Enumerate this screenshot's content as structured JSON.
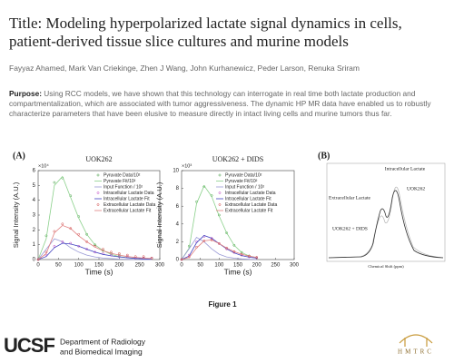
{
  "header": {
    "title": "Title: Modeling hyperpolarized lactate signal dynamics in cells, patient-derived tissue slice cultures and murine models",
    "authors": "Fayyaz Ahamed, Mark Van Criekinge, Zhen J Wang, John Kurhanewicz, Peder Larson, Renuka Sriram"
  },
  "purpose": {
    "label": "Purpose:",
    "text": "Using RCC models, we have shown that this technology can interrogate in real time both lactate production and compartmentalization, which are associated with tumor aggressiveness. The dynamic HP MR data have enabled us to robustly characterize parameters that have been elusive to measure directly in intact living cells and murine tumors thus far."
  },
  "figure": {
    "panel_a": "(A)",
    "panel_b": "(B)",
    "caption": "Figure 1",
    "spectrum": {
      "label_intra": "Intracellular Lactate",
      "label_uok": "UOK262",
      "label_extra": "Extracellular Lactate",
      "label_dids": "UOK262 + DIDS",
      "x_label": "Chemical Shift (ppm)"
    }
  },
  "chart_data": [
    {
      "type": "line",
      "title": "UOK262",
      "y_exponent": "×10⁴",
      "x_label": "Time (s)",
      "y_label": "Signal Intensity (A.U.)",
      "x": [
        0,
        20,
        40,
        60,
        80,
        100,
        120,
        140,
        160,
        180,
        200,
        220,
        240,
        260,
        280
      ],
      "xlim": [
        0,
        300
      ],
      "xticks": [
        0,
        50,
        100,
        150,
        200,
        250,
        300
      ],
      "ylim": [
        0,
        6
      ],
      "yticks": [
        0,
        1,
        2,
        3,
        4,
        5,
        6
      ],
      "series": [
        {
          "name": "Pyruvate Data/10²",
          "color": "#3c9a3c",
          "style": "points",
          "values": [
            0,
            1.6,
            5.2,
            5.5,
            4.3,
            2.9,
            1.7,
            1.0,
            0.6,
            0.4,
            0.3,
            0.2,
            0.1,
            0.1,
            0.1
          ]
        },
        {
          "name": "Pyruvate Fit/10²",
          "color": "#8ad08a",
          "style": "line",
          "values": [
            0,
            1.4,
            5.0,
            5.6,
            4.2,
            2.8,
            1.7,
            1.0,
            0.6,
            0.35,
            0.2,
            0.12,
            0.07,
            0.04,
            0.02
          ]
        },
        {
          "name": "Input Function / 10²",
          "color": "#9a9ad6",
          "style": "line",
          "values": [
            0,
            0.7,
            1.4,
            1.2,
            0.8,
            0.5,
            0.3,
            0.18,
            0.1,
            0.06,
            0.03,
            0.02,
            0.01,
            0,
            0
          ]
        },
        {
          "name": "Intracellular Lactate Data",
          "color": "#c040c0",
          "style": "points",
          "values": [
            0,
            0.3,
            0.9,
            1.2,
            1.1,
            0.9,
            0.7,
            0.5,
            0.4,
            0.3,
            0.2,
            0.2,
            0.1,
            0.1,
            0.1
          ]
        },
        {
          "name": "Intracellular Lactate Fit",
          "color": "#4040c0",
          "style": "line",
          "values": [
            0,
            0.2,
            0.8,
            1.1,
            1.05,
            0.9,
            0.7,
            0.5,
            0.35,
            0.25,
            0.18,
            0.12,
            0.08,
            0.05,
            0.03
          ]
        },
        {
          "name": "Extracellular Lactate Data",
          "color": "#d04040",
          "style": "points",
          "values": [
            0,
            0.5,
            1.9,
            2.4,
            2.1,
            1.7,
            1.2,
            0.9,
            0.7,
            0.5,
            0.4,
            0.3,
            0.2,
            0.2,
            0.1
          ]
        },
        {
          "name": "Extracellular Lactate Fit",
          "color": "#e08080",
          "style": "line",
          "values": [
            0,
            0.4,
            1.8,
            2.3,
            2.1,
            1.6,
            1.2,
            0.85,
            0.6,
            0.42,
            0.3,
            0.2,
            0.14,
            0.1,
            0.07
          ]
        }
      ]
    },
    {
      "type": "line",
      "title": "UOK262 + DIDS",
      "y_exponent": "×10³",
      "x_label": "Time (s)",
      "y_label": "Signal Intensity (A.U.)",
      "x": [
        0,
        20,
        40,
        60,
        80,
        100,
        120,
        140,
        160,
        180,
        200
      ],
      "xlim": [
        0,
        300
      ],
      "xticks": [
        0,
        50,
        100,
        150,
        200,
        250,
        300
      ],
      "ylim": [
        0,
        10
      ],
      "yticks": [
        0,
        2,
        4,
        6,
        8,
        10
      ],
      "series": [
        {
          "name": "Pyruvate Data/10²",
          "color": "#3c9a3c",
          "style": "points",
          "values": [
            0,
            1.5,
            6.5,
            8.2,
            7.2,
            5.0,
            3.0,
            1.6,
            0.8,
            0.4,
            0.2
          ]
        },
        {
          "name": "Pyruvate Fit/10²",
          "color": "#8ad08a",
          "style": "line",
          "values": [
            0,
            1.3,
            6.3,
            8.3,
            7.1,
            4.9,
            3.0,
            1.6,
            0.8,
            0.4,
            0.2
          ]
        },
        {
          "name": "Input Function / 10²",
          "color": "#9a9ad6",
          "style": "line",
          "values": [
            0,
            1.2,
            2.5,
            2.0,
            1.2,
            0.6,
            0.3,
            0.15,
            0.07,
            0.03,
            0.01
          ]
        },
        {
          "name": "Intracellular Lactate Data",
          "color": "#c040c0",
          "style": "points",
          "values": [
            0,
            0.5,
            2.0,
            2.6,
            2.4,
            1.8,
            1.2,
            0.8,
            0.5,
            0.3,
            0.2
          ]
        },
        {
          "name": "Intracellular Lactate Fit",
          "color": "#4040c0",
          "style": "line",
          "values": [
            0,
            0.4,
            1.9,
            2.7,
            2.4,
            1.8,
            1.2,
            0.75,
            0.45,
            0.27,
            0.16
          ]
        },
        {
          "name": "Extracellular Lactate Data",
          "color": "#d04040",
          "style": "points",
          "values": [
            0,
            0.3,
            1.4,
            2.1,
            2.2,
            1.8,
            1.3,
            0.9,
            0.6,
            0.4,
            0.25
          ]
        },
        {
          "name": "Extracellular Lactate Fit",
          "color": "#e08080",
          "style": "line",
          "values": [
            0,
            0.25,
            1.3,
            2.1,
            2.2,
            1.8,
            1.3,
            0.9,
            0.6,
            0.38,
            0.24
          ]
        }
      ]
    }
  ],
  "footer": {
    "logo": "UCSF",
    "dept_line1": "Department of Radiology",
    "dept_line2": "and Biomedical Imaging",
    "partner": "HMTRC"
  }
}
